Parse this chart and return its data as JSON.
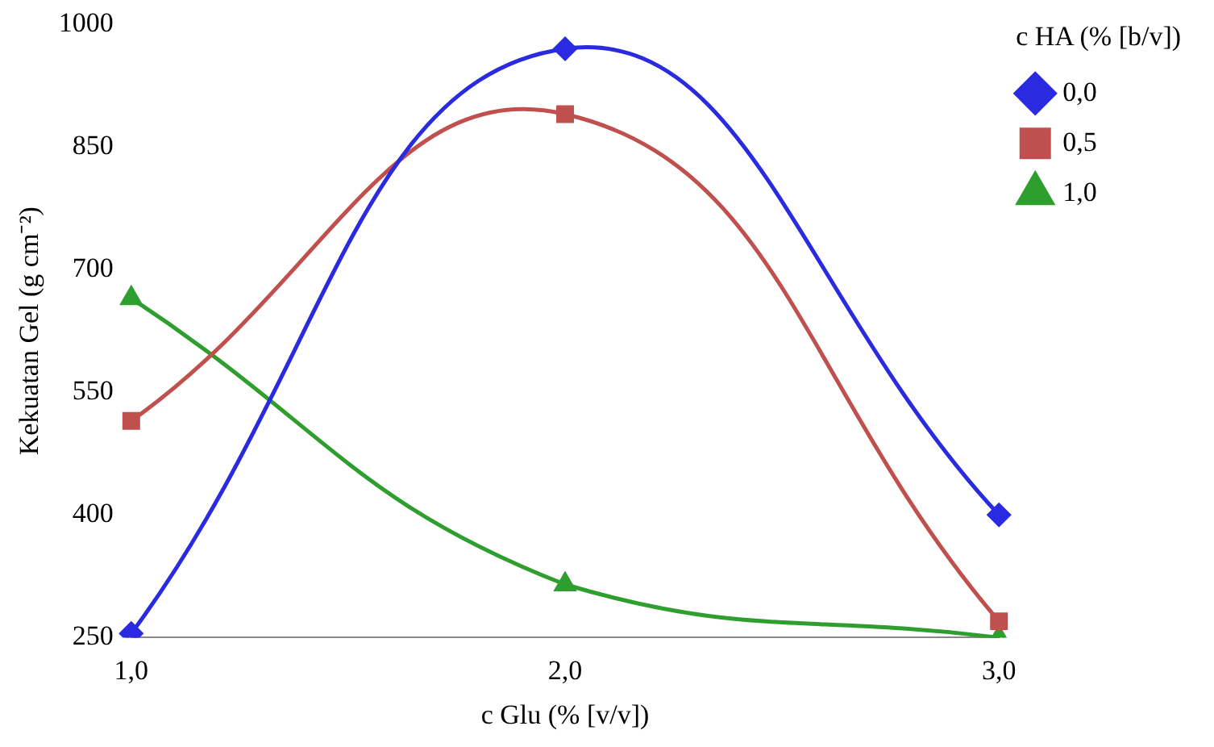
{
  "chart_data": {
    "type": "line",
    "xlabel": "c Glu (% [v/v])",
    "ylabel": "Kekuatan Gel (g cm⁻²)",
    "legend_title": "c HA (% [b/v])",
    "categories": [
      "1,0",
      "2,0",
      "3,0"
    ],
    "series": [
      {
        "name": "0,0",
        "color": "#2a2ae0",
        "marker": "diamond",
        "values": [
          255,
          970,
          400
        ]
      },
      {
        "name": "0,5",
        "color": "#c0504d",
        "marker": "square",
        "values": [
          515,
          890,
          270
        ]
      },
      {
        "name": "1,0",
        "color": "#2e9e2e",
        "marker": "triangle",
        "values": [
          665,
          315,
          250
        ]
      }
    ],
    "ylim": [
      250,
      1000
    ],
    "yticks": [
      250,
      400,
      550,
      700,
      850,
      1000
    ],
    "grid": false,
    "legend": "top right",
    "line_style": "solid"
  }
}
